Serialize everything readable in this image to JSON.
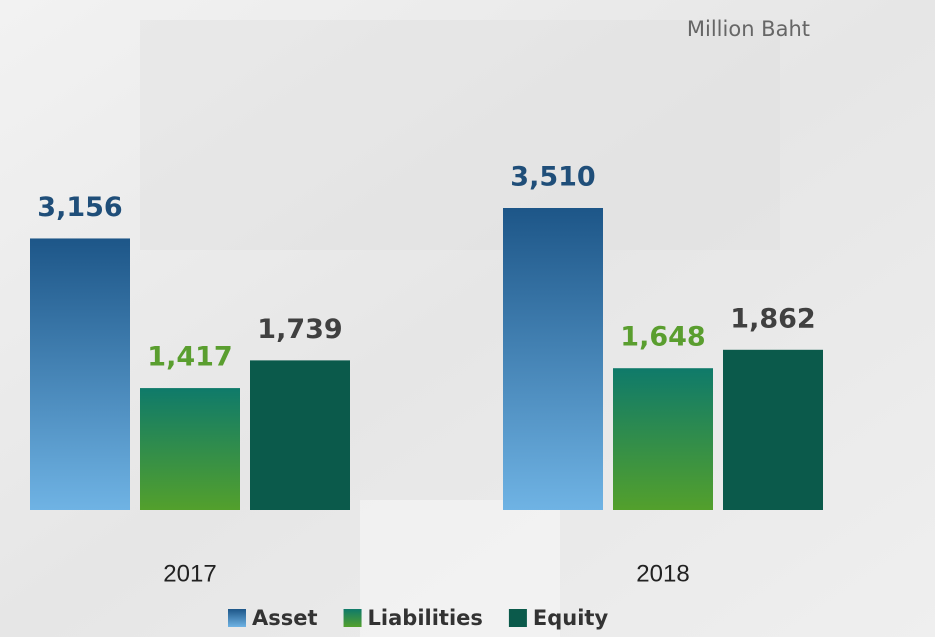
{
  "chart_data": {
    "type": "bar",
    "unit_label": "Million Baht",
    "categories": [
      "2017",
      "2018"
    ],
    "series": [
      {
        "name": "Asset",
        "color": [
          "#1d5688",
          "#6fb3e4"
        ],
        "label_color": "#1f4e79",
        "values": [
          3156,
          3510
        ],
        "value_labels": [
          "3,156",
          "3,510"
        ]
      },
      {
        "name": "Liabilities",
        "color": [
          "#0f7a6a",
          "#53a02c"
        ],
        "label_color": "#5a9e2f",
        "values": [
          1417,
          1648
        ],
        "value_labels": [
          "1,417",
          "1,648"
        ]
      },
      {
        "name": "Equity",
        "color": [
          "#0b5a4b",
          "#0b5a4b"
        ],
        "label_color": "#404040",
        "values": [
          1739,
          1862
        ],
        "value_labels": [
          "1,739",
          "1,862"
        ]
      }
    ],
    "legend": "bottom"
  }
}
